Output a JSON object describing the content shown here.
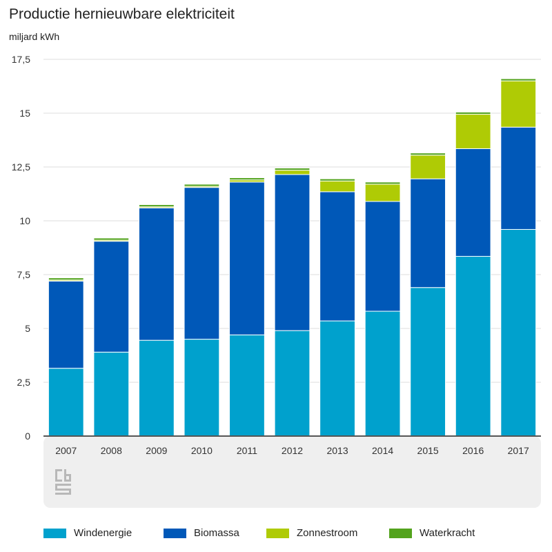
{
  "title": "Productie hernieuwbare elektriciteit",
  "unit": "miljard kWh",
  "logo_text": "cbs",
  "chart_data": {
    "type": "bar",
    "stacked": true,
    "title": "Productie hernieuwbare elektriciteit",
    "ylabel": "miljard kWh",
    "xlabel": "",
    "ylim": [
      0,
      17.5
    ],
    "yticks": [
      0,
      2.5,
      5,
      7.5,
      10,
      12.5,
      15,
      17.5
    ],
    "ytick_labels": [
      "0",
      "2,5",
      "5",
      "7,5",
      "10",
      "12,5",
      "15",
      "17,5"
    ],
    "categories": [
      "2007",
      "2008",
      "2009",
      "2010",
      "2011",
      "2012",
      "2013",
      "2014",
      "2015",
      "2016",
      "2017"
    ],
    "series": [
      {
        "name": "Windenergie",
        "color": "#00a1cd",
        "values": [
          3.15,
          3.9,
          4.45,
          4.5,
          4.7,
          4.9,
          5.35,
          5.8,
          6.9,
          8.35,
          9.6
        ]
      },
      {
        "name": "Biomassa",
        "color": "#0058b8",
        "values": [
          4.05,
          5.15,
          6.15,
          7.05,
          7.1,
          7.25,
          6.0,
          5.1,
          5.05,
          5.0,
          4.75
        ]
      },
      {
        "name": "Zonnestroom",
        "color": "#afcb05",
        "values": [
          0.05,
          0.05,
          0.05,
          0.05,
          0.1,
          0.2,
          0.5,
          0.8,
          1.1,
          1.6,
          2.15
        ]
      },
      {
        "name": "Waterkracht",
        "color": "#53a31d",
        "values": [
          0.1,
          0.1,
          0.1,
          0.1,
          0.1,
          0.1,
          0.1,
          0.1,
          0.1,
          0.1,
          0.1
        ]
      }
    ],
    "legend_position": "bottom",
    "grid": true
  }
}
